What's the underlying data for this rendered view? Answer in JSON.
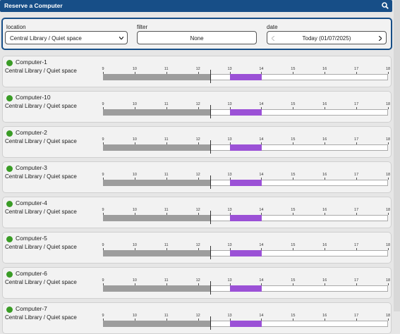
{
  "header": {
    "title": "Reserve a Computer"
  },
  "filters": {
    "location": {
      "label": "location",
      "value": "Central Library / Quiet space"
    },
    "filter": {
      "label": "filter",
      "value": "None"
    },
    "date": {
      "label": "date",
      "value": "Today (01/07/2025)"
    }
  },
  "timeline_hours": [
    9,
    10,
    11,
    12,
    13,
    14,
    15,
    16,
    17,
    18
  ],
  "computers": [
    {
      "name": "Computer-1",
      "location": "Central Library / Quiet space"
    },
    {
      "name": "Computer-10",
      "location": "Central Library / Quiet space"
    },
    {
      "name": "Computer-2",
      "location": "Central Library / Quiet space"
    },
    {
      "name": "Computer-3",
      "location": "Central Library / Quiet space"
    },
    {
      "name": "Computer-4",
      "location": "Central Library / Quiet space"
    },
    {
      "name": "Computer-5",
      "location": "Central Library / Quiet space"
    },
    {
      "name": "Computer-6",
      "location": "Central Library / Quiet space"
    },
    {
      "name": "Computer-7",
      "location": "Central Library / Quiet space"
    }
  ]
}
